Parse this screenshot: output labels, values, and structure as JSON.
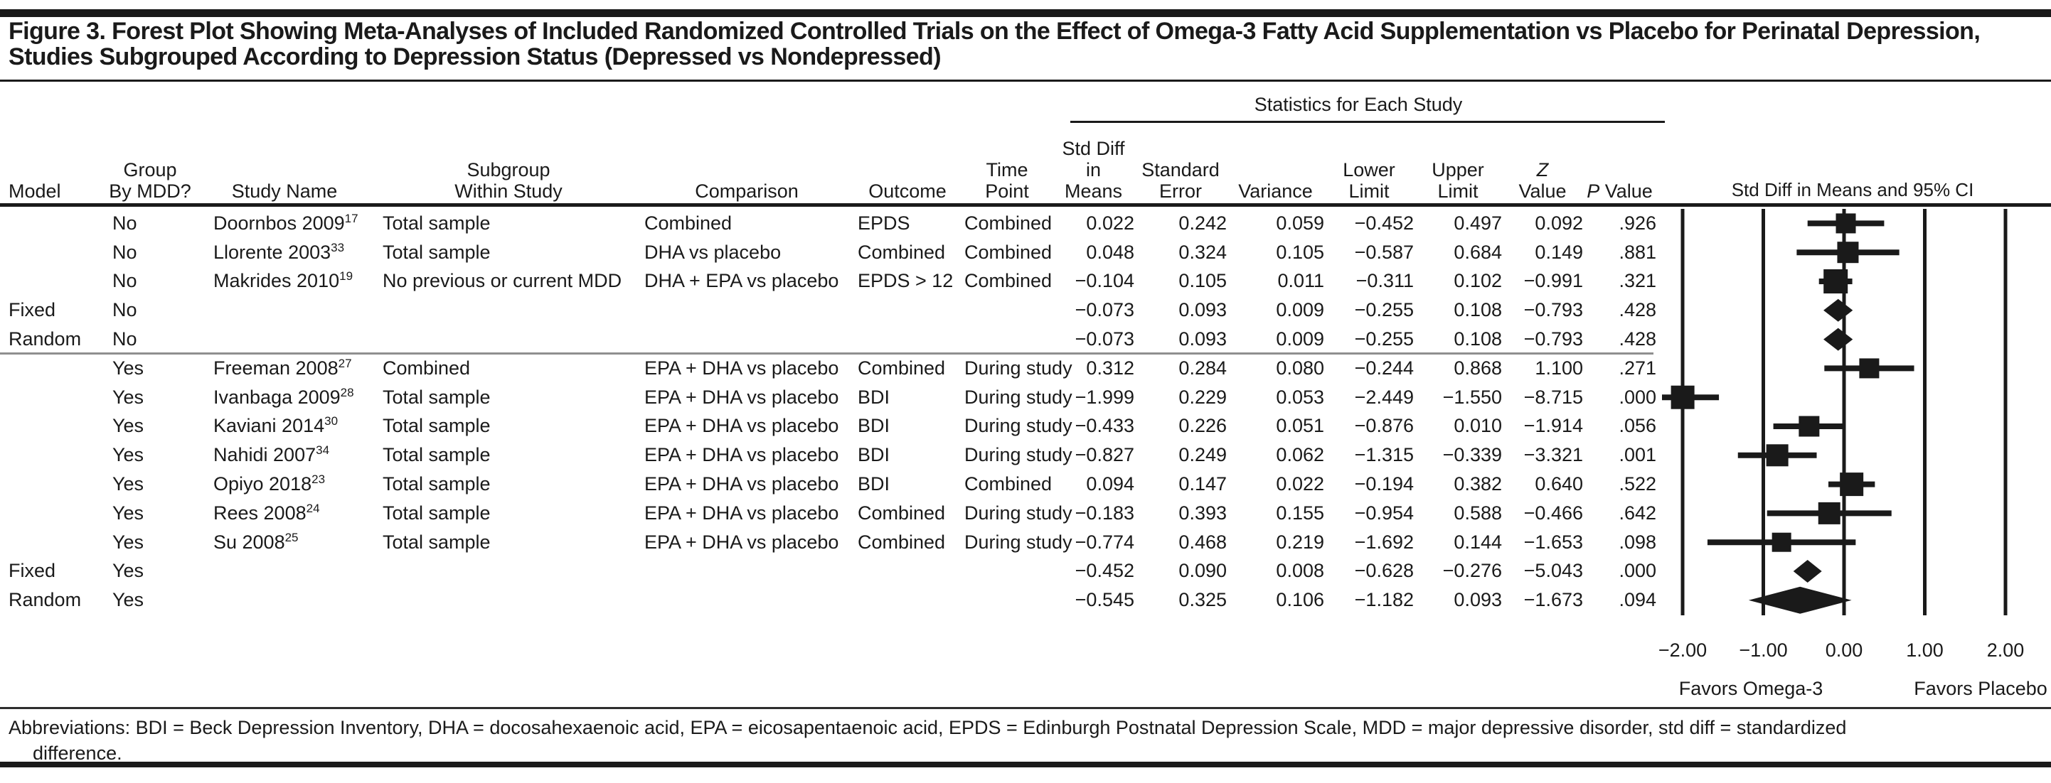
{
  "figure": {
    "title_lines": [
      "Figure 3. Forest Plot Showing Meta-Analyses of Included Randomized Controlled Trials on the Effect of Omega-3 Fatty Acid Supplementation vs Placebo for Perinatal Depression,",
      "Studies Subgrouped According to Depression Status (Depressed vs Nondepressed)"
    ],
    "stats_group_header": "Statistics for Each Study",
    "abbreviations_lines": [
      "Abbreviations: BDI = Beck Depression Inventory, DHA = docosahexaenoic acid, EPA = eicosapentaenoic acid, EPDS = Edinburgh Postnatal Depression Scale, MDD = major depressive disorder, std diff = standardized",
      "difference."
    ]
  },
  "columns": [
    {
      "key": "model",
      "label": "Model",
      "align": "left",
      "data_align": "left"
    },
    {
      "key": "group",
      "label": "Group\nBy MDD?",
      "align": "center",
      "data_align": "left"
    },
    {
      "key": "study",
      "label": "Study Name",
      "align": "center",
      "data_align": "left"
    },
    {
      "key": "subgroup",
      "label": "Subgroup\nWithin Study",
      "align": "center",
      "data_align": "left"
    },
    {
      "key": "comparison",
      "label": "Comparison",
      "align": "center",
      "data_align": "left"
    },
    {
      "key": "outcome",
      "label": "Outcome",
      "align": "center",
      "data_align": "left"
    },
    {
      "key": "time_point",
      "label": "Time Point",
      "align": "center",
      "data_align": "left"
    },
    {
      "key": "mean",
      "label": "Std Diff\nin\nMeans",
      "align": "center",
      "data_align": "right"
    },
    {
      "key": "se",
      "label": "Standard\nError",
      "align": "center",
      "data_align": "right"
    },
    {
      "key": "variance",
      "label": "Variance",
      "align": "center",
      "data_align": "right"
    },
    {
      "key": "lower",
      "label": "Lower\nLimit",
      "align": "center",
      "data_align": "right"
    },
    {
      "key": "upper",
      "label": "Upper\nLimit",
      "align": "center",
      "data_align": "right"
    },
    {
      "key": "z",
      "label": "Z\nValue",
      "align": "center",
      "data_align": "right",
      "italic_first": true
    },
    {
      "key": "p",
      "label": "P Value",
      "align": "center",
      "data_align": "right",
      "italic_first": true
    }
  ],
  "chart_data": {
    "type": "forest",
    "ci_header": "Std Diff in Means and 95% CI",
    "x_ticks": [
      -2,
      -1,
      0,
      1,
      2
    ],
    "xlim": [
      -2.35,
      2.55
    ],
    "axis_note_left": "Favors Omega-3",
    "axis_note_right": "Favors Placebo",
    "rows": [
      {
        "kind": "study",
        "model": "",
        "group": "No",
        "study": "Doornbos 2009",
        "ref": "17",
        "subgroup": "Total sample",
        "comparison": "Combined",
        "outcome": "EPDS",
        "time_point": "Combined",
        "mean": 0.022,
        "se": 0.242,
        "variance": 0.059,
        "lower": -0.452,
        "upper": 0.497,
        "z": 0.092,
        "p": 0.926,
        "weight": 28
      },
      {
        "kind": "study",
        "model": "",
        "group": "No",
        "study": "Llorente 2003",
        "ref": "33",
        "subgroup": "Total sample",
        "comparison": "DHA vs placebo",
        "outcome": "Combined",
        "time_point": "Combined",
        "mean": 0.048,
        "se": 0.324,
        "variance": 0.105,
        "lower": -0.587,
        "upper": 0.684,
        "z": 0.149,
        "p": 0.881,
        "weight": 30
      },
      {
        "kind": "study",
        "model": "",
        "group": "No",
        "study": "Makrides 2010",
        "ref": "19",
        "subgroup": "No previous or current MDD",
        "comparison": "DHA + EPA vs placebo",
        "outcome": "EPDS > 12",
        "time_point": "Combined",
        "mean": -0.104,
        "se": 0.105,
        "variance": 0.011,
        "lower": -0.311,
        "upper": 0.102,
        "z": -0.991,
        "p": 0.321,
        "weight": 34
      },
      {
        "kind": "summary",
        "model": "Fixed",
        "group": "No",
        "study": "",
        "ref": "",
        "subgroup": "",
        "comparison": "",
        "outcome": "",
        "time_point": "",
        "mean": -0.073,
        "se": 0.093,
        "variance": 0.009,
        "lower": -0.255,
        "upper": 0.108,
        "z": -0.793,
        "p": 0.428
      },
      {
        "kind": "summary",
        "model": "Random",
        "group": "No",
        "study": "",
        "ref": "",
        "subgroup": "",
        "comparison": "",
        "outcome": "",
        "time_point": "",
        "mean": -0.073,
        "se": 0.093,
        "variance": 0.009,
        "lower": -0.255,
        "upper": 0.108,
        "z": -0.793,
        "p": 0.428
      },
      {
        "kind": "study",
        "model": "",
        "group": "Yes",
        "study": "Freeman 2008",
        "ref": "27",
        "subgroup": "Combined",
        "comparison": "EPA + DHA vs placebo",
        "outcome": "Combined",
        "time_point": "During study",
        "mean": 0.312,
        "se": 0.284,
        "variance": 0.08,
        "lower": -0.244,
        "upper": 0.868,
        "z": 1.1,
        "p": 0.271,
        "weight": 28
      },
      {
        "kind": "study",
        "model": "",
        "group": "Yes",
        "study": "Ivanbaga 2009",
        "ref": "28",
        "subgroup": "Total sample",
        "comparison": "EPA + DHA vs placebo",
        "outcome": "BDI",
        "time_point": "During study",
        "mean": -1.999,
        "se": 0.229,
        "variance": 0.053,
        "lower": -2.449,
        "upper": -1.55,
        "z": -8.715,
        "p": 0.0,
        "weight": 33
      },
      {
        "kind": "study",
        "model": "",
        "group": "Yes",
        "study": "Kaviani 2014",
        "ref": "30",
        "subgroup": "Total sample",
        "comparison": "EPA + DHA vs placebo",
        "outcome": "BDI",
        "time_point": "During study",
        "mean": -0.433,
        "se": 0.226,
        "variance": 0.051,
        "lower": -0.876,
        "upper": 0.01,
        "z": -1.914,
        "p": 0.056,
        "weight": 29
      },
      {
        "kind": "study",
        "model": "",
        "group": "Yes",
        "study": "Nahidi 2007",
        "ref": "34",
        "subgroup": "Total sample",
        "comparison": "EPA + DHA vs placebo",
        "outcome": "BDI",
        "time_point": "During study",
        "mean": -0.827,
        "se": 0.249,
        "variance": 0.062,
        "lower": -1.315,
        "upper": -0.339,
        "z": -3.321,
        "p": 0.001,
        "weight": 31
      },
      {
        "kind": "study",
        "model": "",
        "group": "Yes",
        "study": "Opiyo 2018",
        "ref": "23",
        "subgroup": "Total sample",
        "comparison": "EPA + DHA vs placebo",
        "outcome": "BDI",
        "time_point": "Combined",
        "mean": 0.094,
        "se": 0.147,
        "variance": 0.022,
        "lower": -0.194,
        "upper": 0.382,
        "z": 0.64,
        "p": 0.522,
        "weight": 33
      },
      {
        "kind": "study",
        "model": "",
        "group": "Yes",
        "study": "Rees 2008",
        "ref": "24",
        "subgroup": "Total sample",
        "comparison": "EPA + DHA vs placebo",
        "outcome": "Combined",
        "time_point": "During study",
        "mean": -0.183,
        "se": 0.393,
        "variance": 0.155,
        "lower": -0.954,
        "upper": 0.588,
        "z": -0.466,
        "p": 0.642,
        "weight": 31
      },
      {
        "kind": "study",
        "model": "",
        "group": "Yes",
        "study": "Su 2008",
        "ref": "25",
        "subgroup": "Total sample",
        "comparison": "EPA + DHA vs placebo",
        "outcome": "Combined",
        "time_point": "During study",
        "mean": -0.774,
        "se": 0.468,
        "variance": 0.219,
        "lower": -1.692,
        "upper": 0.144,
        "z": -1.653,
        "p": 0.098,
        "weight": 27
      },
      {
        "kind": "summary",
        "model": "Fixed",
        "group": "Yes",
        "study": "",
        "ref": "",
        "subgroup": "",
        "comparison": "",
        "outcome": "",
        "time_point": "",
        "mean": -0.452,
        "se": 0.09,
        "variance": 0.008,
        "lower": -0.628,
        "upper": -0.276,
        "z": -5.043,
        "p": 0.0
      },
      {
        "kind": "summary",
        "model": "Random",
        "group": "Yes",
        "study": "",
        "ref": "",
        "subgroup": "",
        "comparison": "",
        "outcome": "",
        "time_point": "",
        "mean": -0.545,
        "se": 0.325,
        "variance": 0.106,
        "lower": -1.182,
        "upper": 0.093,
        "z": -1.673,
        "p": 0.094
      }
    ]
  }
}
